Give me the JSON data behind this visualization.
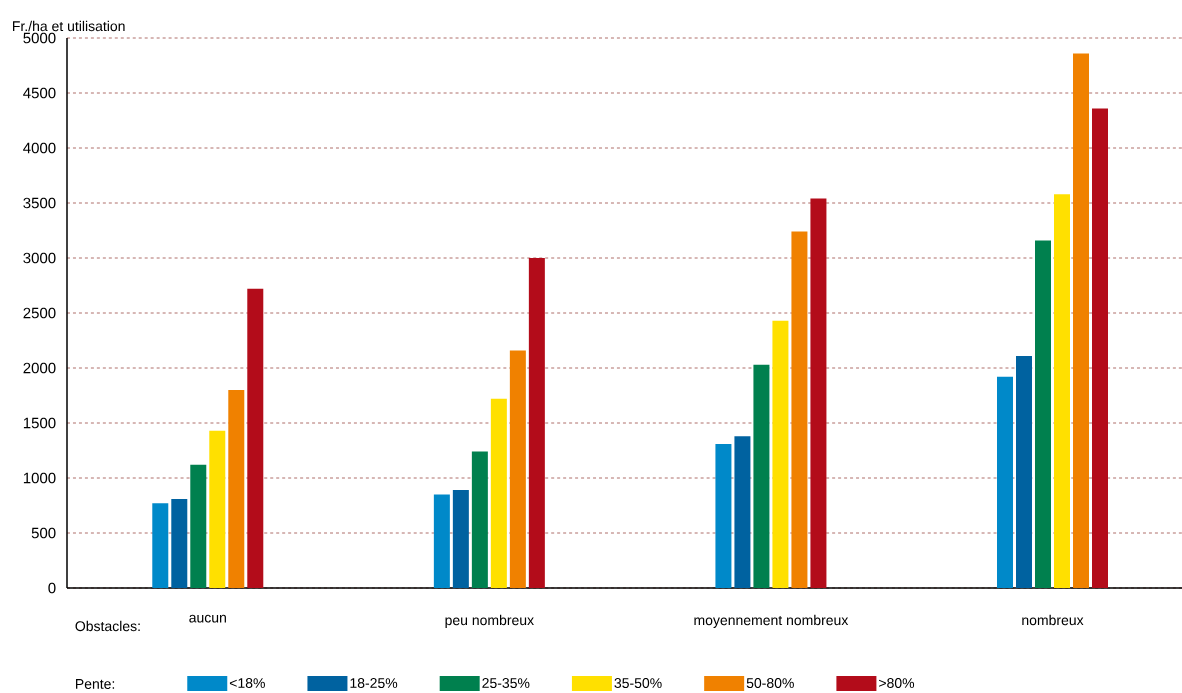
{
  "chart_data": {
    "type": "bar",
    "xlabel": "Obstacles:",
    "ylabel": "Fr./ha et utilisation",
    "legend_title": "Pente:",
    "categories": [
      "aucun",
      "peu nombreux",
      "moyennement nombreux",
      "nombreux"
    ],
    "series": [
      {
        "name": "<18%",
        "color": "#0089c9",
        "values": [
          770,
          850,
          1310,
          1920
        ]
      },
      {
        "name": "18-25%",
        "color": "#0062a0",
        "values": [
          810,
          890,
          1380,
          2110
        ]
      },
      {
        "name": "25-35%",
        "color": "#00804e",
        "values": [
          1120,
          1240,
          2030,
          3160
        ]
      },
      {
        "name": "35-50%",
        "color": "#ffe000",
        "values": [
          1430,
          1720,
          2430,
          3580
        ]
      },
      {
        "name": "50-80%",
        "color": "#f08100",
        "values": [
          1800,
          2160,
          3240,
          4860
        ]
      },
      {
        "name": ">80%",
        "color": "#b30c1a",
        "values": [
          2720,
          3000,
          3540,
          4360
        ]
      }
    ],
    "ylim": [
      0,
      5000
    ],
    "yticks": [
      0,
      500,
      1000,
      1500,
      2000,
      2500,
      3000,
      3500,
      4000,
      4500,
      5000
    ],
    "grid": "y",
    "legend": "bottom"
  }
}
